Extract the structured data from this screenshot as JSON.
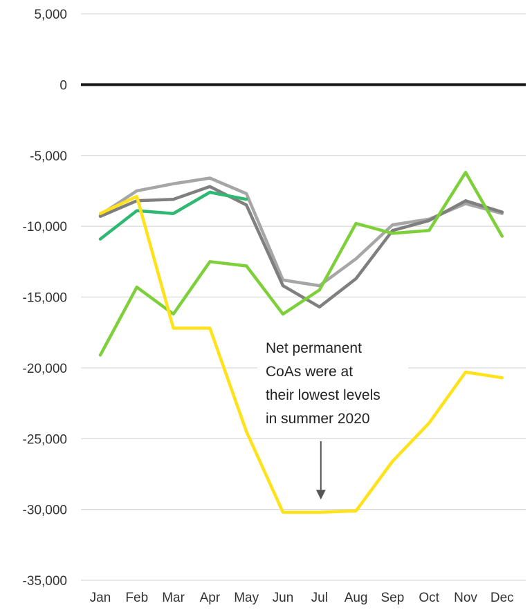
{
  "chart_data": {
    "type": "line",
    "title": "",
    "xlabel": "",
    "ylabel": "",
    "categories": [
      "Jan",
      "Feb",
      "Mar",
      "Apr",
      "May",
      "Jun",
      "Jul",
      "Aug",
      "Sep",
      "Oct",
      "Nov",
      "Dec"
    ],
    "ylim": [
      -35000,
      5000
    ],
    "yticks": [
      5000,
      0,
      -5000,
      -10000,
      -15000,
      -20000,
      -25000,
      -30000,
      -35000
    ],
    "ytick_labels": [
      "5,000",
      "0",
      "-5,000",
      "-10,000",
      "-15,000",
      "-20,000",
      "-25,000",
      "-30,000",
      "-35,000"
    ],
    "grid": true,
    "legend": "none",
    "series": [
      {
        "color": "#a6a6a6",
        "values": [
          -9200,
          -7500,
          -7000,
          -6600,
          -7700,
          -13800,
          -14200,
          -12300,
          -9900,
          -9500,
          -8400,
          -9100
        ]
      },
      {
        "color": "#7f7f7f",
        "values": [
          -9300,
          -8200,
          -8100,
          -7200,
          -8500,
          -14200,
          -15700,
          -13700,
          -10300,
          -9600,
          -8200,
          -9000
        ]
      },
      {
        "color": "#2eb872",
        "values": [
          -10900,
          -8900,
          -9100,
          -7600,
          -8100,
          null,
          null,
          null,
          null,
          null,
          null,
          null
        ]
      },
      {
        "color": "#7ed03b",
        "values": [
          -19100,
          -14300,
          -16200,
          -12500,
          -12800,
          -16200,
          -14500,
          -9800,
          -10500,
          -10300,
          -6200,
          -10700
        ]
      },
      {
        "color": "#ffe21a",
        "values": [
          -9100,
          -7900,
          -17200,
          -17200,
          -24500,
          -30200,
          -30200,
          -30100,
          -26600,
          -23900,
          -20300,
          -20700
        ]
      }
    ],
    "annotations": [
      {
        "lines": [
          "Net permanent",
          "CoAs were at",
          "their lowest levels",
          "in summer 2020"
        ],
        "arrow_to": {
          "x": "Jul",
          "y": -29200
        }
      }
    ]
  }
}
